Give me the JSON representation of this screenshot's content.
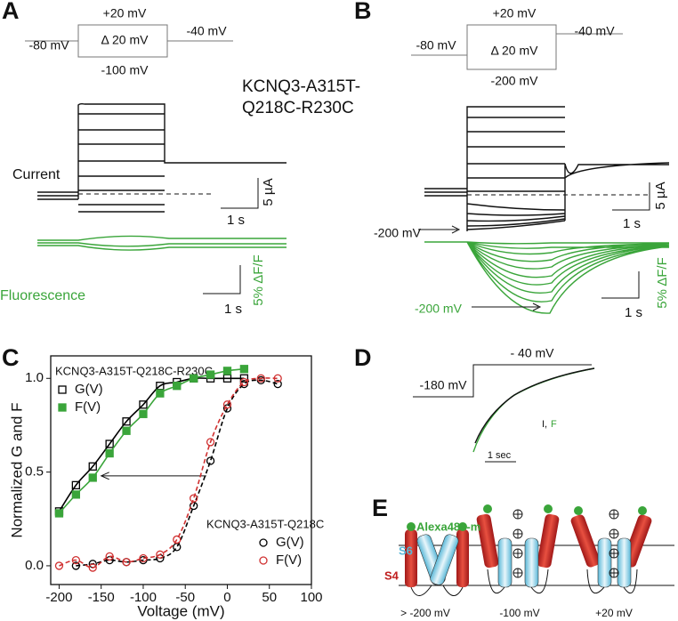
{
  "panel_a": {
    "label": "A",
    "protocol": [
      "+20 mV",
      "-80 mV",
      "Δ 20 mV",
      "-40 mV",
      "-100 mV"
    ],
    "construct": [
      "KCNQ3-A315T-",
      "Q218C-R230C"
    ],
    "current": "Current",
    "fluorescence": "Fluorescence",
    "scale_current": [
      "1 s",
      "5 µA"
    ],
    "scale_fluor": [
      "1 s",
      "5% ΔF/F"
    ]
  },
  "panel_b": {
    "label": "B",
    "protocol": [
      "+20 mV",
      "-80 mV",
      "Δ 20 mV",
      "-40 mV",
      "-200 mV"
    ],
    "arrow_labels": [
      "-200 mV",
      "-200 mV"
    ],
    "scale_current": [
      "1 s",
      "5 µA"
    ],
    "scale_fluor": [
      "1 s",
      "5% ΔF/F"
    ]
  },
  "chart_data": {
    "type": "scatter",
    "label": "C",
    "x_label": "Voltage (mV)",
    "y_label": "Normalized G and F",
    "groups": [
      "KCNQ3-A315T-Q218C-R230C",
      "KCNQ3-A315T-Q218C"
    ],
    "xlim": [
      -210,
      100
    ],
    "xticks": [
      -200,
      -150,
      -100,
      -50,
      0,
      50,
      100
    ],
    "ylim": [
      -0.1,
      1.12
    ],
    "yticks": [
      {
        "value": 0,
        "label": "0.0"
      },
      {
        "value": 0.5,
        "label": "0.5"
      },
      {
        "value": 1,
        "label": "1.0"
      }
    ],
    "series": [
      {
        "name": "G(V)",
        "group": 0,
        "marker": "square",
        "filled": false,
        "line_style": "solid",
        "color": "#000000",
        "x": [
          -200,
          -180,
          -160,
          -140,
          -120,
          -100,
          -80,
          -60,
          -40,
          -20,
          0,
          20
        ],
        "values": [
          0.29,
          0.43,
          0.53,
          0.65,
          0.77,
          0.86,
          0.96,
          0.98,
          1.0,
          1.0,
          1.0,
          1.0
        ]
      },
      {
        "name": "F(V)",
        "group": 0,
        "marker": "square",
        "filled": true,
        "line_style": "solid",
        "color": "#3aa53a",
        "x": [
          -200,
          -180,
          -160,
          -140,
          -120,
          -100,
          -80,
          -60,
          -40,
          -20,
          0,
          20
        ],
        "values": [
          0.28,
          0.38,
          0.47,
          0.6,
          0.72,
          0.81,
          0.92,
          0.96,
          1.0,
          1.02,
          1.04,
          1.05
        ]
      },
      {
        "name": "G(V)",
        "group": 1,
        "marker": "circle",
        "filled": false,
        "line_style": "dashed",
        "color": "#000000",
        "x": [
          -180,
          -160,
          -140,
          -120,
          -100,
          -80,
          -60,
          -40,
          -20,
          0,
          20,
          40,
          60
        ],
        "values": [
          0.0,
          0.01,
          0.03,
          0.02,
          0.03,
          0.04,
          0.1,
          0.32,
          0.56,
          0.84,
          0.97,
          0.99,
          0.97
        ]
      },
      {
        "name": "F(V)",
        "group": 1,
        "marker": "circle",
        "filled": false,
        "line_style": "dashed",
        "color": "#d03030",
        "x": [
          -200,
          -180,
          -160,
          -140,
          -120,
          -100,
          -80,
          -60,
          -40,
          -20,
          0,
          20,
          40,
          60
        ],
        "values": [
          0.0,
          0.03,
          -0.01,
          0.05,
          0.02,
          0.04,
          0.06,
          0.14,
          0.36,
          0.66,
          0.86,
          0.98,
          1.0,
          1.0
        ]
      }
    ]
  },
  "panel_d": {
    "label": "D",
    "voltages": [
      "- 40 mV",
      "-180 mV"
    ],
    "legend_i": "I,",
    "legend_f": "F",
    "scale": "1 sec"
  },
  "panel_e": {
    "label": "E",
    "dye": "Alexa488-m",
    "s6": "S6",
    "s4": "S4",
    "states": [
      "> -200 mV",
      "-100 mV",
      "+20 mV"
    ]
  }
}
